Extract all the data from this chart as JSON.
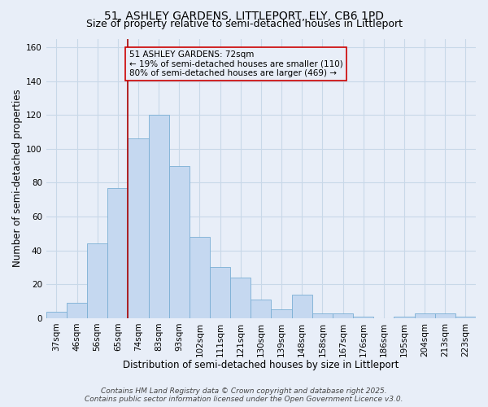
{
  "title_line1": "51, ASHLEY GARDENS, LITTLEPORT, ELY, CB6 1PD",
  "title_line2": "Size of property relative to semi-detached houses in Littleport",
  "categories": [
    "37sqm",
    "46sqm",
    "56sqm",
    "65sqm",
    "74sqm",
    "83sqm",
    "93sqm",
    "102sqm",
    "111sqm",
    "121sqm",
    "130sqm",
    "139sqm",
    "148sqm",
    "158sqm",
    "167sqm",
    "176sqm",
    "186sqm",
    "195sqm",
    "204sqm",
    "213sqm",
    "223sqm"
  ],
  "values": [
    4,
    9,
    44,
    77,
    106,
    120,
    90,
    48,
    30,
    24,
    11,
    5,
    14,
    3,
    3,
    1,
    0,
    1,
    3,
    3,
    1
  ],
  "bar_color": "#c5d8f0",
  "bar_edgecolor": "#7aafd4",
  "vline_index": 4,
  "vline_color": "#aa0000",
  "annotation_text": "51 ASHLEY GARDENS: 72sqm\n← 19% of semi-detached houses are smaller (110)\n80% of semi-detached houses are larger (469) →",
  "annotation_box_facecolor": "#e8eef8",
  "annotation_box_edgecolor": "#cc0000",
  "xlabel": "Distribution of semi-detached houses by size in Littleport",
  "ylabel": "Number of semi-detached properties",
  "ylim": [
    0,
    165
  ],
  "yticks": [
    0,
    20,
    40,
    60,
    80,
    100,
    120,
    140,
    160
  ],
  "background_color": "#e8eef8",
  "grid_color": "#c8d8e8",
  "title_fontsize": 10,
  "subtitle_fontsize": 9,
  "axis_label_fontsize": 8.5,
  "tick_fontsize": 7.5,
  "annotation_fontsize": 7.5,
  "footer_fontsize": 6.5,
  "footer_line1": "Contains HM Land Registry data © Crown copyright and database right 2025.",
  "footer_line2": "Contains public sector information licensed under the Open Government Licence v3.0."
}
